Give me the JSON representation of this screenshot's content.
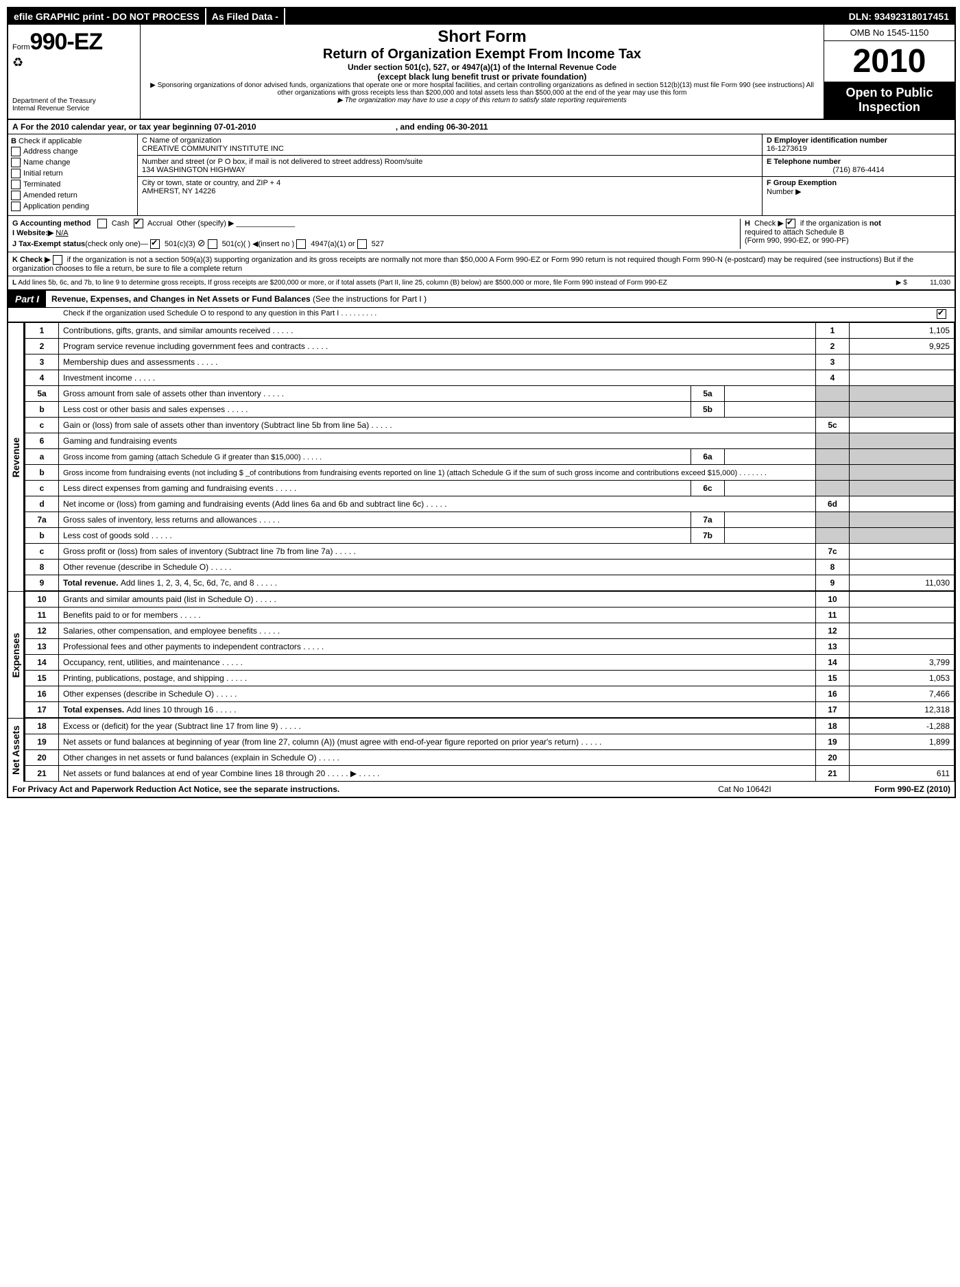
{
  "topbar": {
    "efile": "efile GRAPHIC print - DO NOT PROCESS",
    "asfiled": "As Filed Data -",
    "dln": "DLN: 93492318017451"
  },
  "header": {
    "form_prefix": "Form",
    "form_number": "990-EZ",
    "dept1": "Department of the Treasury",
    "dept2": "Internal Revenue Service",
    "short_form": "Short Form",
    "title": "Return of Organization Exempt From Income Tax",
    "subtitle1": "Under section 501(c), 527, or 4947(a)(1) of the Internal Revenue Code",
    "subtitle2": "(except black lung benefit trust or private foundation)",
    "note1": "▶ Sponsoring organizations of donor advised funds, organizations that operate one or more hospital facilities, and certain controlling organizations as defined in section 512(b)(13) must file Form 990 (see instructions) All other organizations with gross receipts less than $200,000 and total assets less than $500,000 at the end of the year may use this form",
    "note2": "▶ The organization may have to use a copy of this return to satisfy state reporting requirements",
    "omb": "OMB No 1545-1150",
    "year": "2010",
    "open1": "Open to Public",
    "open2": "Inspection"
  },
  "sectionA": {
    "label": "A",
    "text": "For the 2010 calendar year, or tax year beginning 07-01-2010",
    "ending": ", and ending 06-30-2011"
  },
  "sectionB": {
    "label": "B",
    "heading": "Check if applicable",
    "items": [
      "Address change",
      "Name change",
      "Initial return",
      "Terminated",
      "Amended return",
      "Application pending"
    ]
  },
  "sectionC": {
    "c_label": "C Name of organization",
    "c_value": "CREATIVE COMMUNITY INSTITUTE INC",
    "street_label": "Number and street (or P O box, if mail is not delivered to street address) Room/suite",
    "street_value": "134 WASHINGTON HIGHWAY",
    "city_label": "City or town, state or country, and ZIP + 4",
    "city_value": "AMHERST, NY  14226"
  },
  "sectionDEF": {
    "d_label": "D Employer identification number",
    "d_value": "16-1273619",
    "e_label": "E Telephone number",
    "e_value": "(716) 876-4414",
    "f_label": "F Group Exemption",
    "f_label2": "Number ▶"
  },
  "lineG": {
    "g": "G Accounting method",
    "cash": "Cash",
    "accrual": "Accrual",
    "other": "Other (specify) ▶",
    "h": "H",
    "h_text1": "Check ▶",
    "h_text2": "if the organization is",
    "h_not": "not",
    "h_text3": "required to attach Schedule B",
    "h_text4": "(Form 990, 990-EZ, or 990-PF)"
  },
  "lineI": {
    "label": "I Website:▶",
    "value": "N/A"
  },
  "lineJ": {
    "label": "J Tax-Exempt status",
    "paren": "(check only one)—",
    "opt1": "501(c)(3)",
    "opt2": "501(c)(  ) ◀(insert no )",
    "opt3": "4947(a)(1) or",
    "opt4": "527"
  },
  "lineK": {
    "label": "K Check ▶",
    "text": "if the organization is not a section 509(a)(3) supporting organization and its gross receipts are normally not more than $50,000  A Form 990-EZ or Form 990 return is not required though Form 990-N (e-postcard) may be required (see instructions)  But if the organization chooses to file a return, be sure to file a complete return"
  },
  "lineL": {
    "label": "L",
    "text": "Add lines 5b, 6c, and 7b, to line 9 to determine gross receipts, If gross receipts are $200,000 or more, or if total assets (Part II, line 25, column (B) below) are $500,000 or more, file Form 990 instead of Form 990-EZ",
    "arrow": "▶ $",
    "value": "11,030"
  },
  "part1": {
    "label": "Part I",
    "title": "Revenue, Expenses, and Changes in Net Assets or Fund Balances",
    "title_paren": "(See the instructions for Part I )",
    "sub": "Check if the organization used Schedule O to respond to any question in this Part I    .     .     .     .     .     .     .     .     ."
  },
  "sections": {
    "revenue": "Revenue",
    "expenses": "Expenses",
    "netassets": "Net Assets"
  },
  "rows": [
    {
      "n": "1",
      "desc": "Contributions, gifts, grants, and similar amounts received",
      "rn": "1",
      "val": "1,105"
    },
    {
      "n": "2",
      "desc": "Program service revenue including government fees and contracts",
      "rn": "2",
      "val": "9,925"
    },
    {
      "n": "3",
      "desc": "Membership dues and assessments",
      "rn": "3",
      "val": ""
    },
    {
      "n": "4",
      "desc": "Investment income",
      "rn": "4",
      "val": ""
    },
    {
      "n": "5a",
      "desc": "Gross amount from sale of assets other than inventory",
      "mid_n": "5a",
      "mid_val": "",
      "shaded": true
    },
    {
      "n": "b",
      "desc": "Less cost or other basis and sales expenses",
      "mid_n": "5b",
      "mid_val": "",
      "shaded": true
    },
    {
      "n": "c",
      "desc": "Gain or (loss) from sale of assets other than inventory (Subtract line 5b from line 5a)",
      "rn": "5c",
      "val": ""
    },
    {
      "n": "6",
      "desc": "Gaming and fundraising events",
      "shaded_full": true
    },
    {
      "n": "a",
      "desc": "Gross income from gaming (attach Schedule G if greater than $15,000)",
      "mid_n": "6a",
      "mid_val": "",
      "shaded": true,
      "small": true
    },
    {
      "n": "b",
      "desc": "Gross income from fundraising events (not including $ _of contributions from fundraising events reported on line 1) (attach Schedule G if the sum of such gross income and contributions exceed $15,000)    .     .     .     .     .     .     .",
      "shaded": true,
      "small": true,
      "noMid": true
    },
    {
      "n": "c",
      "desc": "Less direct expenses from gaming and fundraising events",
      "mid_n": "6c",
      "mid_val": "",
      "shaded": true
    },
    {
      "n": "d",
      "desc": "Net income or (loss) from gaming and fundraising events (Add lines 6a and 6b and subtract line 6c)",
      "rn": "6d",
      "val": ""
    },
    {
      "n": "7a",
      "desc": "Gross sales of inventory, less returns and allowances",
      "mid_n": "7a",
      "mid_val": "",
      "shaded": true
    },
    {
      "n": "b",
      "desc": "Less cost of goods sold",
      "mid_n": "7b",
      "mid_val": "",
      "shaded": true
    },
    {
      "n": "c",
      "desc": "Gross profit or (loss) from sales of inventory (Subtract line 7b from line 7a)",
      "rn": "7c",
      "val": ""
    },
    {
      "n": "8",
      "desc": "Other revenue (describe in Schedule O)",
      "rn": "8",
      "val": ""
    },
    {
      "n": "9",
      "desc": "Total revenue. Add lines 1, 2, 3, 4, 5c, 6d, 7c, and 8",
      "rn": "9",
      "val": "11,030",
      "bold": true
    }
  ],
  "expense_rows": [
    {
      "n": "10",
      "desc": "Grants and similar amounts paid (list in Schedule O)",
      "rn": "10",
      "val": ""
    },
    {
      "n": "11",
      "desc": "Benefits paid to or for members",
      "rn": "11",
      "val": ""
    },
    {
      "n": "12",
      "desc": "Salaries, other compensation, and employee benefits",
      "rn": "12",
      "val": ""
    },
    {
      "n": "13",
      "desc": "Professional fees and other payments to independent contractors",
      "rn": "13",
      "val": ""
    },
    {
      "n": "14",
      "desc": "Occupancy, rent, utilities, and maintenance",
      "rn": "14",
      "val": "3,799"
    },
    {
      "n": "15",
      "desc": "Printing, publications, postage, and shipping",
      "rn": "15",
      "val": "1,053"
    },
    {
      "n": "16",
      "desc": "Other expenses (describe in Schedule O)",
      "rn": "16",
      "val": "7,466"
    },
    {
      "n": "17",
      "desc": "Total expenses. Add lines 10 through 16",
      "rn": "17",
      "val": "12,318",
      "bold": true
    }
  ],
  "net_rows": [
    {
      "n": "18",
      "desc": "Excess or (deficit) for the year (Subtract line 17 from line 9)",
      "rn": "18",
      "val": "-1,288"
    },
    {
      "n": "19",
      "desc": "Net assets or fund balances at beginning of year (from line 27, column (A)) (must agree with end-of-year figure reported on prior year's return)",
      "rn": "19",
      "val": "1,899"
    },
    {
      "n": "20",
      "desc": "Other changes in net assets or fund balances (explain in Schedule O)",
      "rn": "20",
      "val": ""
    },
    {
      "n": "21",
      "desc": "Net assets or fund balances at end of year  Combine lines 18 through 20    .     .     .     .     .   ▶",
      "rn": "21",
      "val": "611"
    }
  ],
  "footer": {
    "left": "For Privacy Act and Paperwork Reduction Act Notice, see the separate instructions.",
    "mid": "Cat No 10642I",
    "right": "Form 990-EZ (2010)"
  }
}
